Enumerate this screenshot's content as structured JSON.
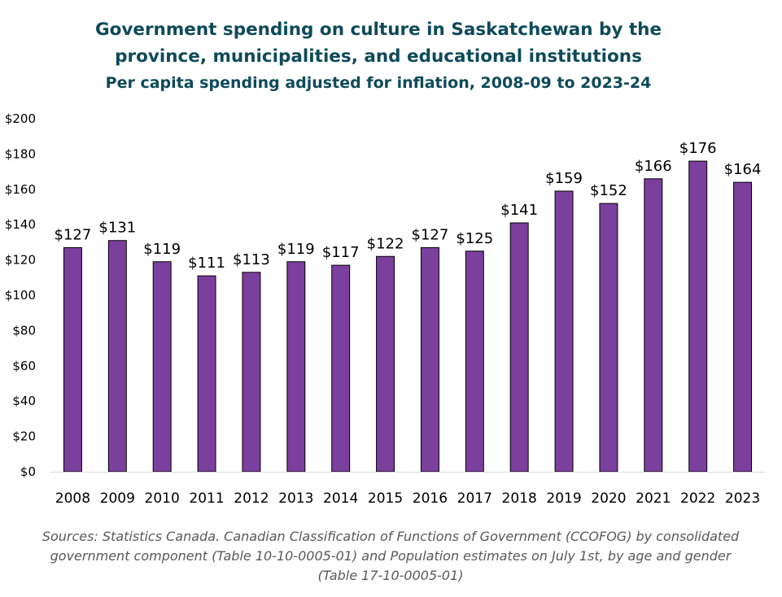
{
  "chart_data": {
    "type": "bar",
    "title": "Government spending on culture in Saskatchewan by the",
    "title_line2": "province, municipalities, and educational institutions",
    "subtitle": "Per capita spending adjusted for inflation, 2008-09 to 2023-24",
    "categories": [
      "2008",
      "2009",
      "2010",
      "2011",
      "2012",
      "2013",
      "2014",
      "2015",
      "2016",
      "2017",
      "2018",
      "2019",
      "2020",
      "2021",
      "2022",
      "2023"
    ],
    "values": [
      127,
      131,
      119,
      111,
      113,
      119,
      117,
      122,
      127,
      125,
      141,
      159,
      152,
      166,
      176,
      164
    ],
    "data_labels": [
      "$127",
      "$131",
      "$119",
      "$111",
      "$113",
      "$119",
      "$117",
      "$122",
      "$127",
      "$125",
      "$141",
      "$159",
      "$152",
      "$166",
      "$176",
      "$164"
    ],
    "y_ticks": [
      "$0",
      "$20",
      "$40",
      "$60",
      "$80",
      "$100",
      "$120",
      "$140",
      "$160",
      "$180",
      "$200"
    ],
    "ylim": [
      0,
      200
    ],
    "xlabel": "",
    "ylabel": "",
    "grid": false,
    "bar_color": "#7b3f9e",
    "bar_stroke": "#000000",
    "title_color": "#0d4a5a"
  },
  "source_text": "Sources: Statistics Canada. Canadian Classification of Functions of Government (CCOFOG) by consolidated government component (Table 10-10-0005-01) and Population estimates on July 1st, by age and gender (Table 17-10-0005-01)"
}
